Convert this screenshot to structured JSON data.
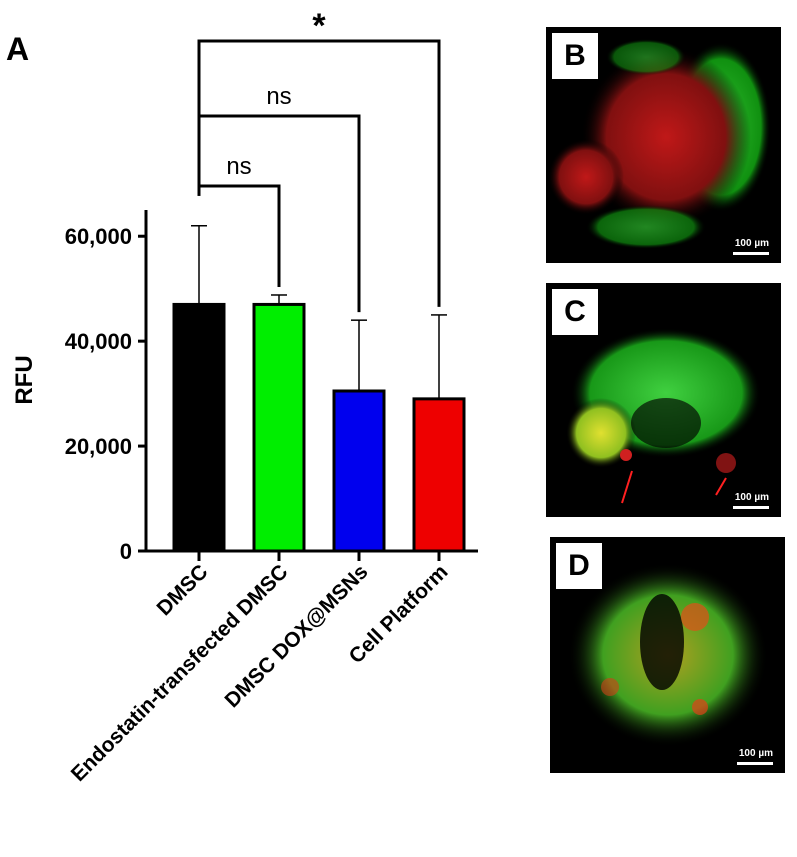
{
  "figure": {
    "panel_a_label": "A",
    "panels": [
      {
        "label": "B",
        "scale": "100 µm"
      },
      {
        "label": "C",
        "scale": "100 µm"
      },
      {
        "label": "D",
        "scale": "100 µm"
      }
    ]
  },
  "chart_data": {
    "type": "bar",
    "categories": [
      "DMSC",
      "Endostatin-transfected DMSC",
      "DMSC DOX@MSNs",
      "Cell Platform"
    ],
    "values": [
      47000,
      47000,
      30500,
      29000
    ],
    "errors": [
      15000,
      1800,
      13500,
      16000
    ],
    "colors": [
      "#000000",
      "#00ee00",
      "#0000ee",
      "#ee0000"
    ],
    "ylabel": "RFU",
    "xlabel": "",
    "ylim": [
      0,
      65000
    ],
    "yticks": [
      0,
      20000,
      40000,
      60000
    ],
    "ytick_labels": [
      "0",
      "20,000",
      "40,000",
      "60,000"
    ],
    "significance": [
      {
        "from": 0,
        "to": 1,
        "label": "ns"
      },
      {
        "from": 0,
        "to": 2,
        "label": "ns"
      },
      {
        "from": 0,
        "to": 3,
        "label": "*"
      }
    ]
  }
}
